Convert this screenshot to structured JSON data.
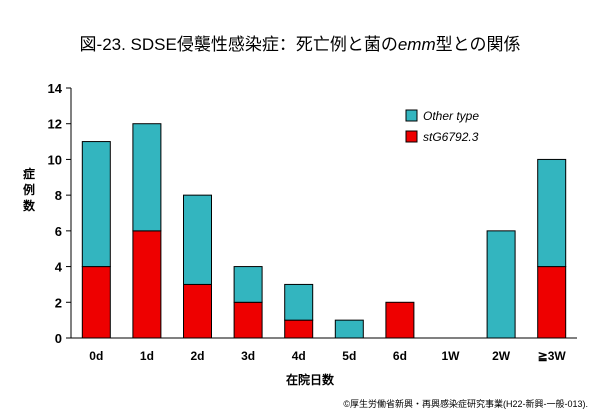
{
  "title": {
    "prefix": "図-23. SDSE侵襲性感染症：死亡例と菌の",
    "italic": "emm",
    "suffix": "型との関係"
  },
  "credit": "©厚生労働省新興・再興感染症研究事業(H22-新興-一般-013).",
  "colors": {
    "other": "#33b5bf",
    "st": "#ee0000"
  },
  "chart_data": {
    "type": "bar",
    "stacked": true,
    "title": "図-23. SDSE侵襲性感染症：死亡例と菌のemm型との関係",
    "xlabel": "在院日数",
    "ylabel": "症例数",
    "ylim": [
      0,
      14
    ],
    "yticks": [
      0,
      2,
      4,
      6,
      8,
      10,
      12,
      14
    ],
    "categories": [
      "0d",
      "1d",
      "2d",
      "3d",
      "4d",
      "5d",
      "6d",
      "1W",
      "2W",
      "≧3W"
    ],
    "series": [
      {
        "name": "stG6792.3",
        "color": "#ee0000",
        "values": [
          4,
          6,
          3,
          2,
          1,
          0,
          2,
          0,
          0,
          4
        ]
      },
      {
        "name": "Other type",
        "color": "#33b5bf",
        "values": [
          7,
          6,
          5,
          2,
          2,
          1,
          0,
          0,
          6,
          6
        ]
      }
    ],
    "legend": [
      "Other type",
      "stG6792.3"
    ],
    "legend_position": "top-right"
  }
}
